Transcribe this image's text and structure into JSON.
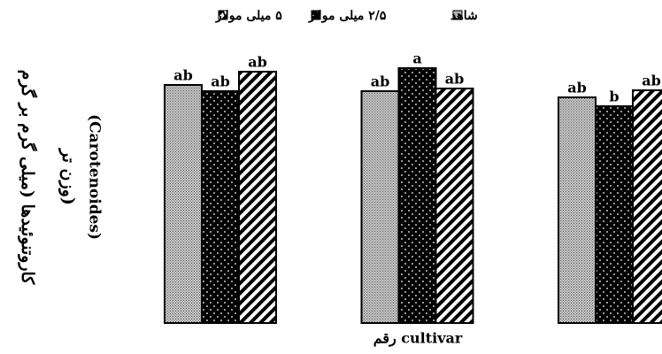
{
  "chart_data": {
    "type": "bar",
    "ylabel": [
      "کاروتنوئیدها (میلی گرم بر گرم",
      "وزن تر)",
      "(Carotenoides)"
    ],
    "xlabel": "رقم cultivar",
    "categories": [
      null,
      null,
      null
    ],
    "series": [
      {
        "name": "شاهد",
        "color": "#a8a8a8",
        "values": [
          269,
          262,
          255
        ],
        "labels": [
          "ab",
          "ab",
          "ab"
        ]
      },
      {
        "name": "۲/۵ میلی مولار",
        "color": "#000000",
        "values": [
          262,
          288,
          245
        ],
        "labels": [
          "ab",
          "a",
          "b"
        ]
      },
      {
        "name": "۵ میلی مولار",
        "color": "#ffffff",
        "values": [
          284,
          265,
          263
        ],
        "labels": [
          "ab",
          "ab",
          "ab"
        ]
      }
    ],
    "ylim": [
      0,
      300
    ]
  }
}
